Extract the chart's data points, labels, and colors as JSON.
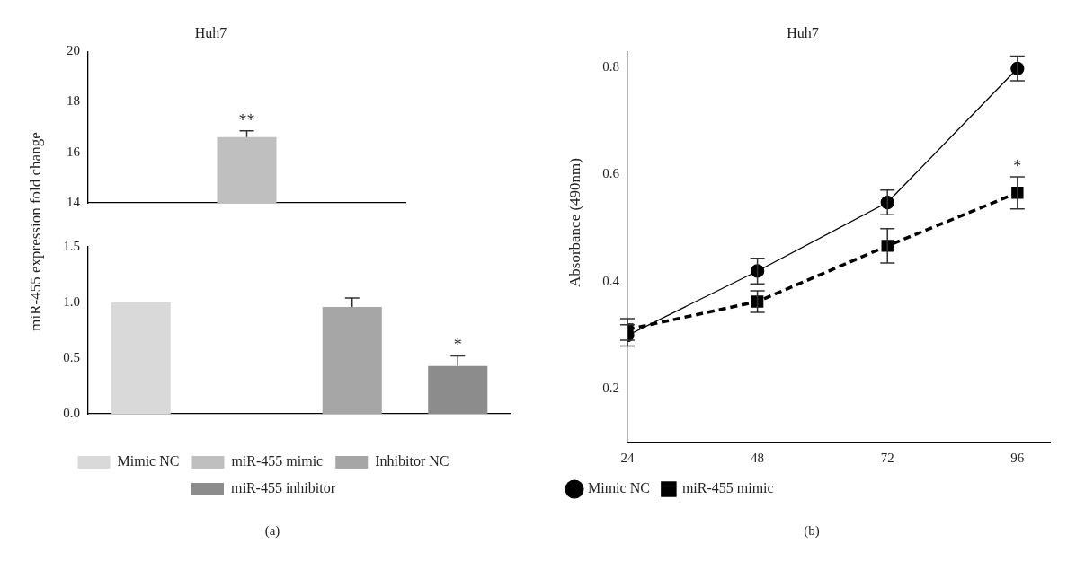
{
  "chart_data": [
    {
      "type": "bar",
      "title": "Huh7",
      "categories": [
        null
      ],
      "values": [
        16.6
      ],
      "color": "#bfbfbf",
      "errors": [
        [
          16.6,
          16.85
        ]
      ],
      "ylim": [
        14,
        20
      ],
      "yticks": [
        14,
        16,
        18,
        20
      ],
      "grid": false,
      "annotations": [
        {
          "text": "**",
          "y": 16.6
        }
      ]
    },
    {
      "type": "bar",
      "ylabel": "miR-455 expression fold change",
      "categories": [
        null,
        null,
        null,
        null
      ],
      "series": [
        {
          "name": "Mimic NC",
          "color": "#d9d9d9",
          "values": [
            1.0,
            null,
            null,
            null
          ],
          "errors": [
            null,
            null,
            null,
            null
          ]
        },
        {
          "name": "miR-455 mimic",
          "color": "#bfbfbf",
          "values": [
            null,
            null,
            null,
            null
          ],
          "errors": [
            null,
            null,
            null,
            null
          ]
        },
        {
          "name": "Inhibitor NC",
          "color": "#a6a6a6",
          "values": [
            null,
            null,
            0.96,
            null
          ],
          "errors": [
            null,
            null,
            [
              0.96,
              1.04
            ],
            null
          ]
        },
        {
          "name": "miR-455 inhibitor",
          "color": "#8c8c8c",
          "values": [
            null,
            null,
            null,
            0.43
          ],
          "errors": [
            null,
            null,
            null,
            [
              0.43,
              0.52
            ]
          ]
        }
      ],
      "ylim": [
        0,
        1.5
      ],
      "yticks": [
        {
          "value": 0,
          "label": "0.0"
        },
        0.5,
        {
          "value": 1,
          "label": "1.0"
        },
        1.5
      ],
      "grid": false,
      "legend": "bottom",
      "annotations": [
        {
          "text": "*",
          "y": 0.43
        },
        "(a)"
      ]
    },
    {
      "type": "line",
      "title": "Huh7",
      "ylabel": "Absorbance (490nm)",
      "x": [
        24,
        48,
        72,
        96
      ],
      "series": [
        {
          "name": "Mimic NC",
          "color": "#000000",
          "values": [
            0.3,
            0.42,
            0.548,
            0.798
          ],
          "errors": [
            0.02,
            0.024,
            0.023,
            0.023
          ],
          "marker": "circle",
          "line_style": "solid"
        },
        {
          "name": "miR-455 mimic",
          "color": "#000000",
          "values": [
            0.311,
            0.363,
            0.467,
            0.566
          ],
          "errors": [
            0.02,
            0.02,
            0.032,
            0.03
          ],
          "marker": "square",
          "line_style": "dashed"
        }
      ],
      "xlim": [
        24,
        102
      ],
      "xticks": [
        24,
        48,
        72,
        96
      ],
      "ylim": [
        0.1,
        0.83
      ],
      "yticks": [
        0.2,
        0.4,
        0.6,
        0.8
      ],
      "grid": false,
      "legend": "bottom left",
      "annotations": [
        {
          "text": "*",
          "x": 96,
          "y": 0.566
        },
        "(b)"
      ]
    }
  ]
}
